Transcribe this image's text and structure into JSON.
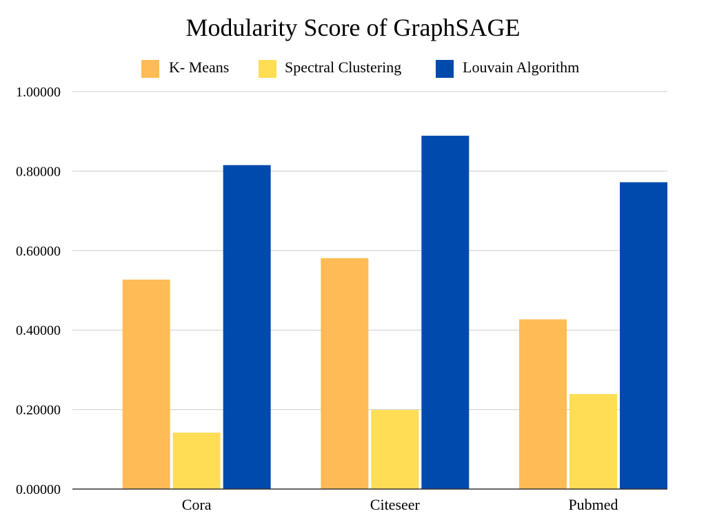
{
  "chart_data": {
    "type": "bar",
    "title": "Modularity Score of GraphSAGE",
    "xlabel": "",
    "ylabel": "",
    "categories": [
      "Cora",
      "Citeseer",
      "Pubmed"
    ],
    "series": [
      {
        "name": "K- Means",
        "color": "#ffbb55",
        "values": [
          0.527,
          0.581,
          0.427
        ]
      },
      {
        "name": "Spectral Clustering",
        "color": "#ffdd55",
        "values": [
          0.142,
          0.199,
          0.239
        ]
      },
      {
        "name": "Louvain Algorithm",
        "color": "#004aad",
        "values": [
          0.815,
          0.889,
          0.772
        ]
      }
    ],
    "ylim": [
      0,
      1
    ],
    "yticks": [
      0,
      0.2,
      0.4,
      0.6,
      0.8,
      1.0
    ],
    "ytick_labels": [
      "0.00000",
      "0.20000",
      "0.40000",
      "0.60000",
      "0.80000",
      "1.00000"
    ],
    "grid": true,
    "legend_position": "top"
  }
}
